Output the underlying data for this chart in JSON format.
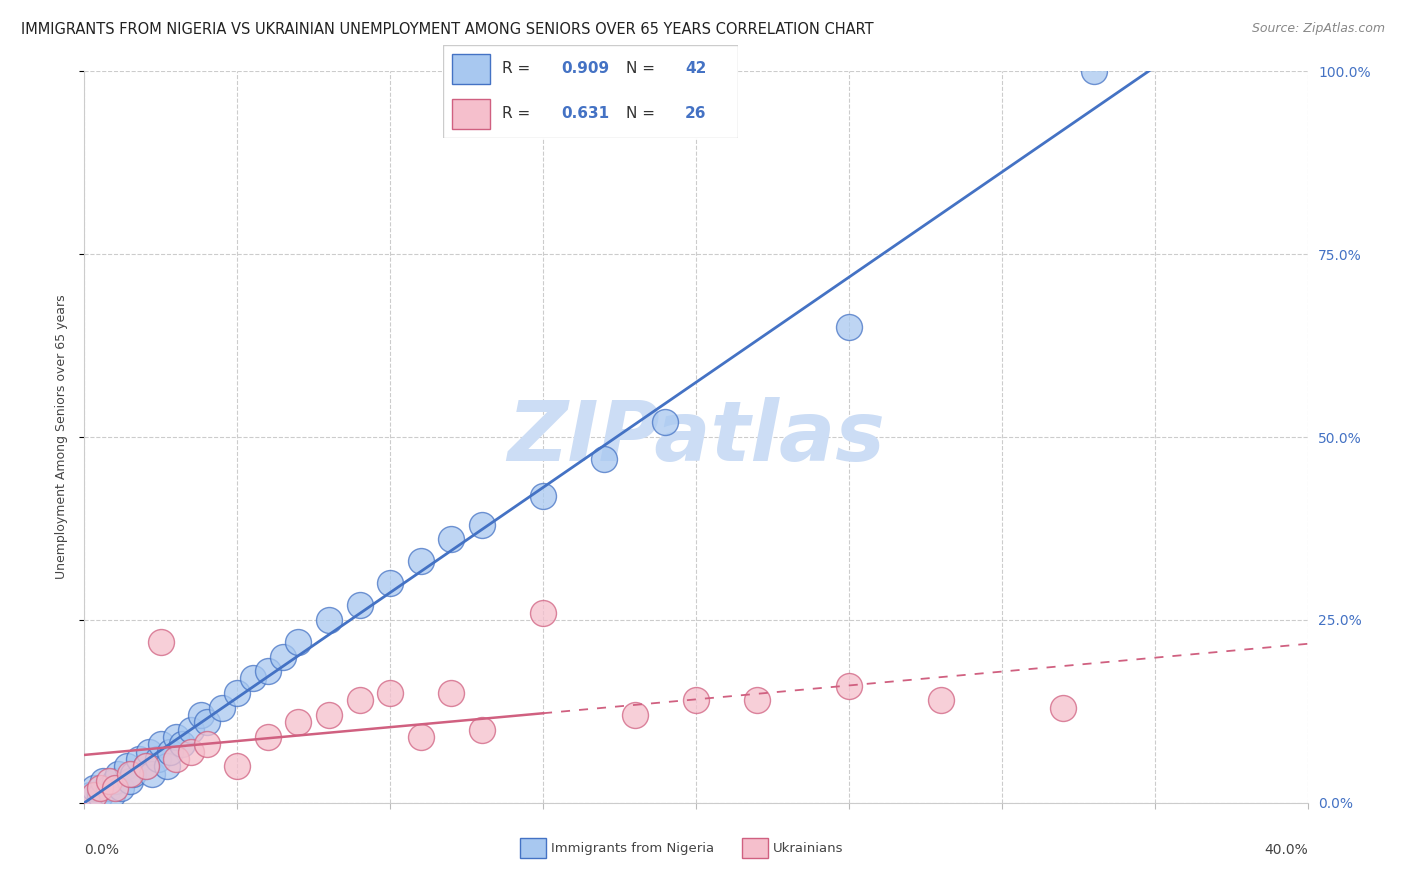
{
  "title": "IMMIGRANTS FROM NIGERIA VS UKRAINIAN UNEMPLOYMENT AMONG SENIORS OVER 65 YEARS CORRELATION CHART",
  "source": "Source: ZipAtlas.com",
  "ylabel": "Unemployment Among Seniors over 65 years",
  "xmin": 0.0,
  "xmax": 40.0,
  "ymin": 0.0,
  "ymax": 100.0,
  "ytick_labels_right": [
    "0.0%",
    "25.0%",
    "50.0%",
    "75.0%",
    "100.0%"
  ],
  "ytick_vals": [
    0,
    25,
    50,
    75,
    100
  ],
  "xticks": [
    0,
    5,
    10,
    15,
    20,
    25,
    30,
    35,
    40
  ],
  "legend_R1": "0.909",
  "legend_N1": "42",
  "legend_R2": "0.631",
  "legend_N2": "26",
  "color_blue": "#a8c8f0",
  "color_blue_dark": "#4472c4",
  "color_blue_line": "#4472c4",
  "color_pink": "#f5bfcc",
  "color_pink_dark": "#d06080",
  "color_pink_line": "#d06080",
  "watermark": "ZIPatlas",
  "watermark_color": "#ccddf5",
  "blue_points_x": [
    0.2,
    0.3,
    0.5,
    0.6,
    0.8,
    0.9,
    1.0,
    1.1,
    1.2,
    1.4,
    1.5,
    1.6,
    1.8,
    2.0,
    2.1,
    2.2,
    2.4,
    2.5,
    2.7,
    2.8,
    3.0,
    3.2,
    3.5,
    3.8,
    4.0,
    4.5,
    5.0,
    5.5,
    6.0,
    6.5,
    7.0,
    8.0,
    9.0,
    10.0,
    11.0,
    12.0,
    13.0,
    15.0,
    17.0,
    19.0,
    25.0,
    33.0
  ],
  "blue_points_y": [
    1,
    2,
    1,
    3,
    2,
    1,
    3,
    4,
    2,
    5,
    3,
    4,
    6,
    5,
    7,
    4,
    6,
    8,
    5,
    7,
    9,
    8,
    10,
    12,
    11,
    13,
    15,
    17,
    18,
    20,
    22,
    25,
    27,
    30,
    33,
    36,
    38,
    42,
    47,
    52,
    65,
    100
  ],
  "pink_points_x": [
    0.3,
    0.5,
    0.8,
    1.0,
    1.5,
    2.0,
    2.5,
    3.0,
    3.5,
    4.0,
    5.0,
    6.0,
    7.0,
    8.0,
    9.0,
    10.0,
    11.0,
    12.0,
    13.0,
    15.0,
    18.0,
    20.0,
    22.0,
    25.0,
    28.0,
    32.0
  ],
  "pink_points_y": [
    1,
    2,
    3,
    2,
    4,
    5,
    22,
    6,
    7,
    8,
    5,
    9,
    11,
    12,
    14,
    15,
    9,
    15,
    10,
    26,
    12,
    14,
    14,
    16,
    14,
    13
  ],
  "title_fontsize": 10.5,
  "source_fontsize": 9,
  "axis_label_fontsize": 9,
  "legend_fontsize": 11
}
